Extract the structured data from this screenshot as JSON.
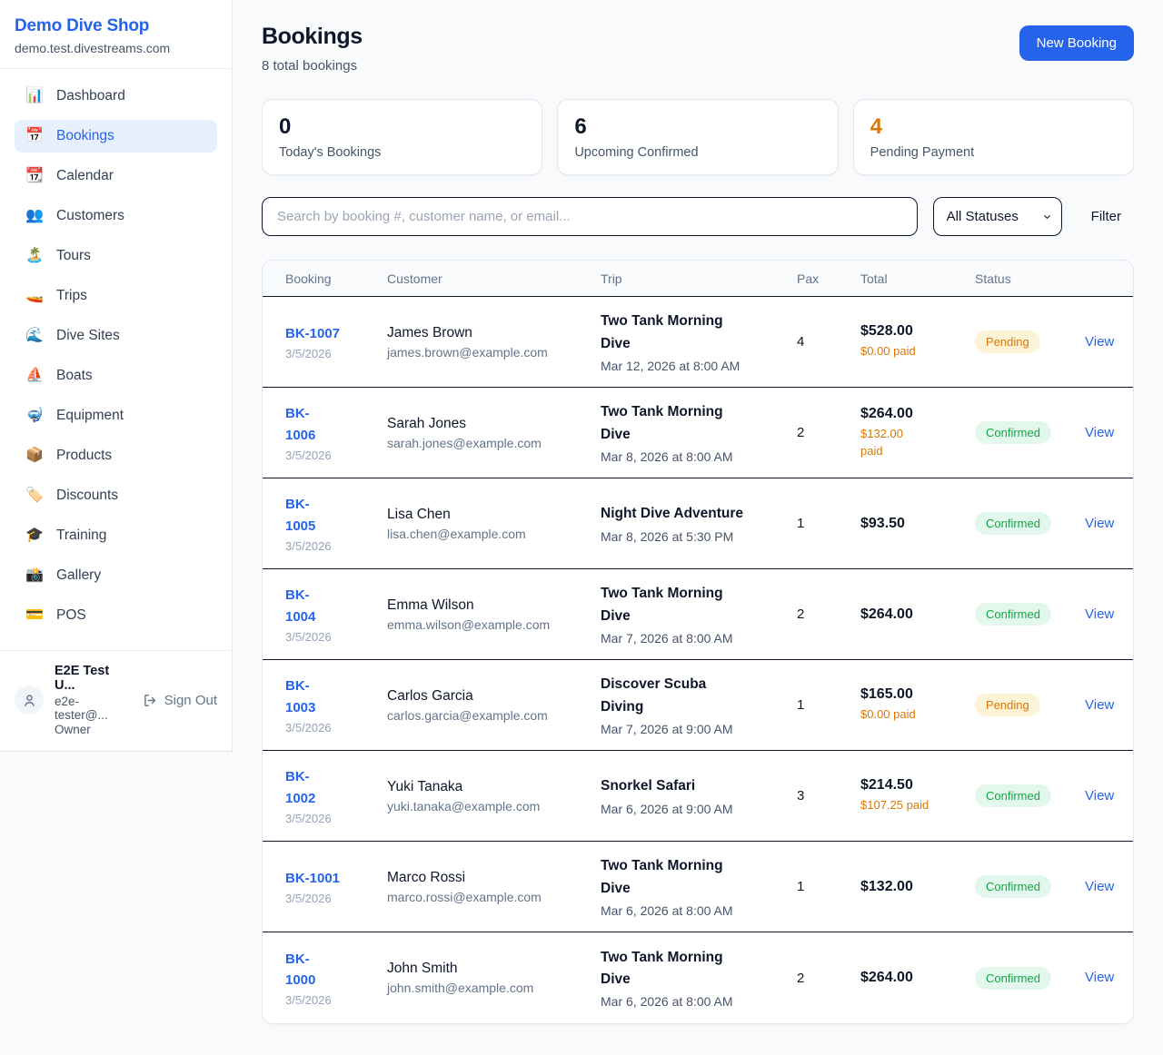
{
  "colors": {
    "accent_blue": "#2563eb",
    "orange": "#d97706",
    "page_bg": "#f8fafc",
    "dark_text": "#0f172a",
    "badges": {
      "pending": {
        "bg": "#fdf3d7",
        "text": "#d97706"
      },
      "confirmed": {
        "bg": "#e3f8ec",
        "text": "#16a34a"
      }
    }
  },
  "sidebar": {
    "brand": {
      "name": "Demo Dive Shop",
      "domain": "demo.test.divestreams.com"
    },
    "items": [
      {
        "icon_name": "bar-chart-icon",
        "icon_char": "📊",
        "label": "Dashboard",
        "active": false
      },
      {
        "icon_name": "calendar-icon",
        "icon_char": "📅",
        "label": "Bookings",
        "active": true
      },
      {
        "icon_name": "tear-off-calendar-icon",
        "icon_char": "📆",
        "label": "Calendar",
        "active": false
      },
      {
        "icon_name": "people-icon",
        "icon_char": "👥",
        "label": "Customers",
        "active": false
      },
      {
        "icon_name": "island-icon",
        "icon_char": "🏝️",
        "label": "Tours",
        "active": false
      },
      {
        "icon_name": "speedboat-icon",
        "icon_char": "🚤",
        "label": "Trips",
        "active": false
      },
      {
        "icon_name": "wave-icon",
        "icon_char": "🌊",
        "label": "Dive Sites",
        "active": false
      },
      {
        "icon_name": "sailboat-icon",
        "icon_char": "⛵",
        "label": "Boats",
        "active": false
      },
      {
        "icon_name": "diving-mask-icon",
        "icon_char": "🤿",
        "label": "Equipment",
        "active": false
      },
      {
        "icon_name": "package-icon",
        "icon_char": "📦",
        "label": "Products",
        "active": false
      },
      {
        "icon_name": "label-icon",
        "icon_char": "🏷️",
        "label": "Discounts",
        "active": false
      },
      {
        "icon_name": "graduation-cap-icon",
        "icon_char": "🎓",
        "label": "Training",
        "active": false
      },
      {
        "icon_name": "camera-icon",
        "icon_char": "📸",
        "label": "Gallery",
        "active": false
      },
      {
        "icon_name": "credit-card-icon",
        "icon_char": "💳",
        "label": "POS",
        "active": false
      }
    ],
    "user": {
      "name": "E2E Test U...",
      "email": "e2e-tester@...",
      "role": "Owner",
      "sign_out_label": "Sign Out"
    }
  },
  "header": {
    "title": "Bookings",
    "subtitle": "8 total bookings",
    "new_booking_label": "New Booking"
  },
  "stats": [
    {
      "value": "0",
      "label": "Today's Bookings",
      "value_color": "#0f172a"
    },
    {
      "value": "6",
      "label": "Upcoming Confirmed",
      "value_color": "#0f172a"
    },
    {
      "value": "4",
      "label": "Pending Payment",
      "value_color": "#d97706"
    }
  ],
  "filters": {
    "search_placeholder": "Search by booking #, customer name, or email...",
    "status_selected": "All Statuses",
    "filter_label": "Filter"
  },
  "table": {
    "columns": [
      "Booking",
      "Customer",
      "Trip",
      "Pax",
      "Total",
      "Status",
      ""
    ],
    "rows": [
      {
        "number": "BK-1007",
        "date": "3/5/2026",
        "customer": "James Brown",
        "email": "james.brown@example.com",
        "trip": "Two Tank Morning\nDive",
        "trip_time": "Mar 12, 2026 at 8:00 AM",
        "pax": "4",
        "total": "$528.00",
        "paid": "$0.00 paid",
        "status": "Pending",
        "action": "View"
      },
      {
        "number": "BK-\n1006",
        "date": "3/5/2026",
        "customer": "Sarah Jones",
        "email": "sarah.jones@example.com",
        "trip": "Two Tank Morning\nDive",
        "trip_time": "Mar 8, 2026 at 8:00 AM",
        "pax": "2",
        "total": "$264.00",
        "paid": "$132.00\npaid",
        "status": "Confirmed",
        "action": "View"
      },
      {
        "number": "BK-\n1005",
        "date": "3/5/2026",
        "customer": "Lisa Chen",
        "email": "lisa.chen@example.com",
        "trip": "Night Dive Adventure",
        "trip_time": "Mar 8, 2026 at 5:30 PM",
        "pax": "1",
        "total": "$93.50",
        "paid": null,
        "status": "Confirmed",
        "action": "View"
      },
      {
        "number": "BK-\n1004",
        "date": "3/5/2026",
        "customer": "Emma Wilson",
        "email": "emma.wilson@example.com",
        "trip": "Two Tank Morning\nDive",
        "trip_time": "Mar 7, 2026 at 8:00 AM",
        "pax": "2",
        "total": "$264.00",
        "paid": null,
        "status": "Confirmed",
        "action": "View"
      },
      {
        "number": "BK-\n1003",
        "date": "3/5/2026",
        "customer": "Carlos Garcia",
        "email": "carlos.garcia@example.com",
        "trip": "Discover Scuba\nDiving",
        "trip_time": "Mar 7, 2026 at 9:00 AM",
        "pax": "1",
        "total": "$165.00",
        "paid": "$0.00 paid",
        "status": "Pending",
        "action": "View"
      },
      {
        "number": "BK-\n1002",
        "date": "3/5/2026",
        "customer": "Yuki Tanaka",
        "email": "yuki.tanaka@example.com",
        "trip": "Snorkel Safari",
        "trip_time": "Mar 6, 2026 at 9:00 AM",
        "pax": "3",
        "total": "$214.50",
        "paid": "$107.25 paid",
        "status": "Confirmed",
        "action": "View"
      },
      {
        "number": "BK-1001",
        "date": "3/5/2026",
        "customer": "Marco Rossi",
        "email": "marco.rossi@example.com",
        "trip": "Two Tank Morning\nDive",
        "trip_time": "Mar 6, 2026 at 8:00 AM",
        "pax": "1",
        "total": "$132.00",
        "paid": null,
        "status": "Confirmed",
        "action": "View"
      },
      {
        "number": "BK-\n1000",
        "date": "3/5/2026",
        "customer": "John Smith",
        "email": "john.smith@example.com",
        "trip": "Two Tank Morning\nDive",
        "trip_time": "Mar 6, 2026 at 8:00 AM",
        "pax": "2",
        "total": "$264.00",
        "paid": null,
        "status": "Confirmed",
        "action": "View"
      }
    ]
  }
}
